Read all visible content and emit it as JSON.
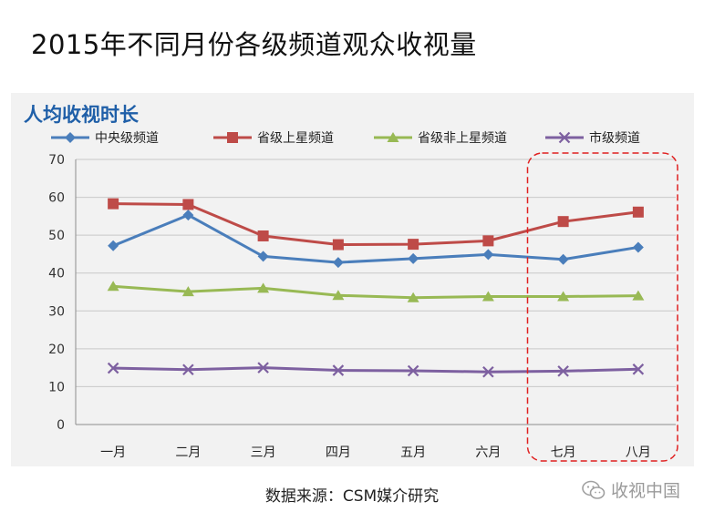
{
  "page_title": "2015年不同月份各级频道观众收视量",
  "source_text": "数据来源：CSM媒介研究",
  "watermark_text": "收视中国",
  "chart_data": {
    "type": "line",
    "title": "人均收视时长",
    "title_color": "#1f5fa8",
    "categories": [
      "一月",
      "二月",
      "三月",
      "四月",
      "五月",
      "六月",
      "七月",
      "八月"
    ],
    "ylim": [
      0,
      70
    ],
    "yticks": [
      0,
      10,
      20,
      30,
      40,
      50,
      60,
      70
    ],
    "grid": true,
    "legend_position": "top",
    "highlight": {
      "from": "七月",
      "to": "八月",
      "color": "#e02020",
      "style": "dashed"
    },
    "series": [
      {
        "name": "中央级频道",
        "color": "#4a7ebb",
        "marker": "diamond",
        "values": [
          47.2,
          55.3,
          44.4,
          42.8,
          43.8,
          44.9,
          43.6,
          46.8
        ]
      },
      {
        "name": "省级上星频道",
        "color": "#be4b48",
        "marker": "square",
        "values": [
          58.3,
          58.1,
          49.8,
          47.5,
          47.6,
          48.5,
          53.6,
          56.1
        ]
      },
      {
        "name": "省级非上星频道",
        "color": "#98b954",
        "marker": "triangle",
        "values": [
          36.5,
          35.1,
          36.0,
          34.1,
          33.5,
          33.8,
          33.8,
          34.0
        ]
      },
      {
        "name": "市级频道",
        "color": "#7d60a0",
        "marker": "x",
        "values": [
          14.9,
          14.5,
          15.0,
          14.3,
          14.2,
          13.9,
          14.1,
          14.6
        ]
      }
    ]
  }
}
